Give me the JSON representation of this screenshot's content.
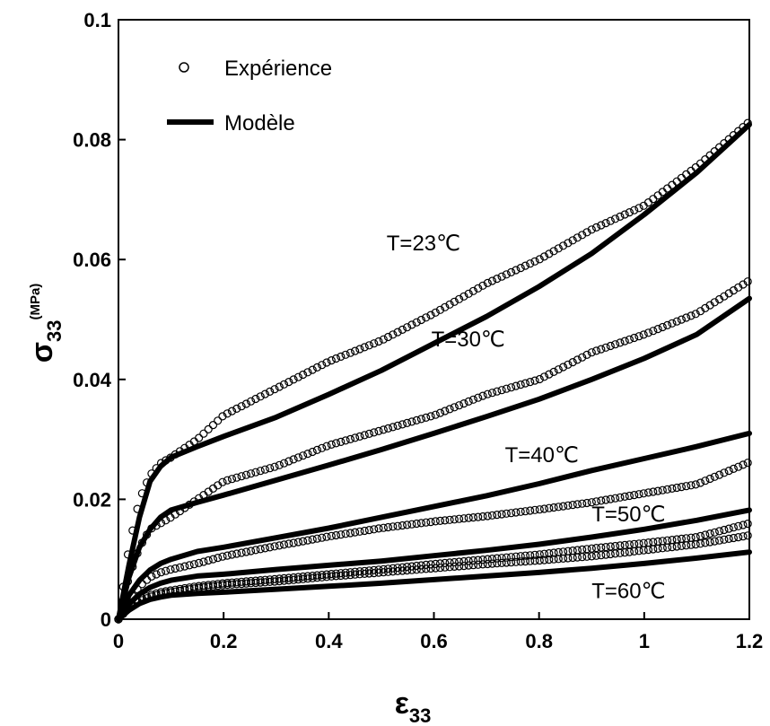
{
  "chart_data": {
    "type": "line",
    "title": "",
    "xlabel": {
      "symbol": "ε",
      "subscript": "33"
    },
    "ylabel": {
      "symbol": "σ",
      "subscript": "33",
      "superscript": "(MPa)"
    },
    "xlim": [
      0,
      1.2
    ],
    "ylim": [
      0,
      0.1
    ],
    "x_ticks": [
      0,
      0.2,
      0.4,
      0.6,
      0.8,
      1,
      1.2
    ],
    "x_tick_labels": [
      "0",
      "0.2",
      "0.4",
      "0.6",
      "0.8",
      "1",
      "1.2"
    ],
    "y_ticks": [
      0,
      0.02,
      0.04,
      0.06,
      0.08,
      0.1
    ],
    "y_tick_labels": [
      "0",
      "0.02",
      "0.04",
      "0.06",
      "0.08",
      "0.1"
    ],
    "grid": false,
    "legend": {
      "placement": "top-left",
      "entries": [
        {
          "label": "Expérience",
          "marker": "open-circle"
        },
        {
          "label": "Modèle",
          "marker": "thick-line"
        }
      ]
    },
    "series": [
      {
        "label": "T=23℃",
        "label_pos": [
          0.51,
          0.0615
        ],
        "model": {
          "x": [
            0,
            0.02,
            0.04,
            0.06,
            0.08,
            0.1,
            0.15,
            0.2,
            0.3,
            0.4,
            0.5,
            0.6,
            0.7,
            0.8,
            0.9,
            1.0,
            1.1,
            1.2
          ],
          "y": [
            0,
            0.009,
            0.017,
            0.023,
            0.0255,
            0.027,
            0.0288,
            0.0305,
            0.0337,
            0.0375,
            0.0415,
            0.046,
            0.0505,
            0.0555,
            0.061,
            0.0675,
            0.0745,
            0.0825
          ]
        },
        "exp": {
          "x": [
            0,
            0.02,
            0.04,
            0.06,
            0.08,
            0.1,
            0.15,
            0.2,
            0.3,
            0.4,
            0.5,
            0.6,
            0.7,
            0.8,
            0.9,
            1.0,
            1.1,
            1.2
          ],
          "y": [
            0,
            0.012,
            0.02,
            0.024,
            0.026,
            0.027,
            0.03,
            0.034,
            0.0385,
            0.043,
            0.0465,
            0.051,
            0.056,
            0.06,
            0.065,
            0.069,
            0.0755,
            0.083
          ]
        }
      },
      {
        "label": "T=30℃",
        "label_pos": [
          0.595,
          0.0455
        ],
        "model": {
          "x": [
            0,
            0.02,
            0.04,
            0.06,
            0.08,
            0.1,
            0.15,
            0.2,
            0.3,
            0.4,
            0.5,
            0.6,
            0.7,
            0.8,
            0.9,
            1.0,
            1.1,
            1.2
          ],
          "y": [
            0,
            0.007,
            0.012,
            0.015,
            0.017,
            0.0182,
            0.0195,
            0.0207,
            0.0232,
            0.0257,
            0.0283,
            0.031,
            0.0338,
            0.0367,
            0.04,
            0.0435,
            0.0475,
            0.0535
          ]
        },
        "exp": {
          "x": [
            0,
            0.02,
            0.04,
            0.06,
            0.08,
            0.1,
            0.15,
            0.2,
            0.3,
            0.4,
            0.5,
            0.6,
            0.7,
            0.8,
            0.9,
            1.0,
            1.1,
            1.2
          ],
          "y": [
            0,
            0.007,
            0.012,
            0.015,
            0.016,
            0.017,
            0.02,
            0.023,
            0.0255,
            0.029,
            0.0315,
            0.034,
            0.0375,
            0.04,
            0.0445,
            0.0475,
            0.051,
            0.0565
          ]
        }
      },
      {
        "label": "T=40℃",
        "label_pos": [
          0.735,
          0.0262
        ],
        "model": {
          "x": [
            0,
            0.02,
            0.04,
            0.06,
            0.08,
            0.1,
            0.15,
            0.2,
            0.3,
            0.4,
            0.5,
            0.6,
            0.7,
            0.8,
            0.9,
            1.0,
            1.1,
            1.2
          ],
          "y": [
            0,
            0.004,
            0.0065,
            0.0082,
            0.0093,
            0.01,
            0.0113,
            0.012,
            0.0136,
            0.0152,
            0.017,
            0.0188,
            0.0206,
            0.0226,
            0.0248,
            0.0268,
            0.0288,
            0.031
          ]
        },
        "exp": {
          "x": [
            0,
            0.02,
            0.04,
            0.06,
            0.08,
            0.1,
            0.15,
            0.2,
            0.3,
            0.4,
            0.5,
            0.6,
            0.7,
            0.8,
            0.9,
            1.0,
            1.1,
            1.2
          ],
          "y": [
            0,
            0.003,
            0.0055,
            0.007,
            0.0078,
            0.0083,
            0.0093,
            0.0105,
            0.0122,
            0.0138,
            0.0152,
            0.0163,
            0.0172,
            0.0183,
            0.0195,
            0.021,
            0.0225,
            0.0262
          ]
        }
      },
      {
        "label": "T=50℃",
        "label_pos": [
          0.9,
          0.0163
        ],
        "model": {
          "x": [
            0,
            0.02,
            0.04,
            0.06,
            0.08,
            0.1,
            0.15,
            0.2,
            0.3,
            0.4,
            0.5,
            0.6,
            0.7,
            0.8,
            0.9,
            1.0,
            1.1,
            1.2
          ],
          "y": [
            0,
            0.0025,
            0.0042,
            0.0053,
            0.006,
            0.0065,
            0.0072,
            0.0075,
            0.0083,
            0.009,
            0.0097,
            0.0106,
            0.0115,
            0.0125,
            0.0137,
            0.015,
            0.0165,
            0.0182
          ]
        },
        "exp": {
          "x": [
            0,
            0.02,
            0.04,
            0.06,
            0.08,
            0.1,
            0.15,
            0.2,
            0.3,
            0.4,
            0.5,
            0.6,
            0.7,
            0.8,
            0.9,
            1.0,
            1.1,
            1.2
          ],
          "y": [
            0,
            0.002,
            0.0033,
            0.004,
            0.0045,
            0.0048,
            0.0055,
            0.006,
            0.0067,
            0.0075,
            0.0083,
            0.0092,
            0.01,
            0.0108,
            0.0118,
            0.0127,
            0.0137,
            0.016
          ]
        }
      },
      {
        "label": "T=60℃",
        "label_pos": [
          0.9,
          0.0035
        ],
        "model": {
          "x": [
            0,
            0.02,
            0.04,
            0.06,
            0.08,
            0.1,
            0.15,
            0.2,
            0.3,
            0.4,
            0.5,
            0.6,
            0.7,
            0.8,
            0.9,
            1.0,
            1.1,
            1.2
          ],
          "y": [
            0,
            0.0015,
            0.0026,
            0.0033,
            0.0037,
            0.004,
            0.0043,
            0.0045,
            0.005,
            0.0055,
            0.006,
            0.0066,
            0.0072,
            0.0078,
            0.0085,
            0.0093,
            0.0102,
            0.0112
          ]
        },
        "exp": {
          "x": [
            0,
            0.02,
            0.04,
            0.06,
            0.08,
            0.1,
            0.15,
            0.2,
            0.3,
            0.4,
            0.5,
            0.6,
            0.7,
            0.8,
            0.9,
            1.0,
            1.1,
            1.2
          ],
          "y": [
            0,
            0.002,
            0.003,
            0.0037,
            0.0042,
            0.0045,
            0.0052,
            0.0057,
            0.0063,
            0.0071,
            0.0078,
            0.0085,
            0.0092,
            0.0098,
            0.0105,
            0.0115,
            0.0125,
            0.014
          ]
        }
      }
    ]
  }
}
